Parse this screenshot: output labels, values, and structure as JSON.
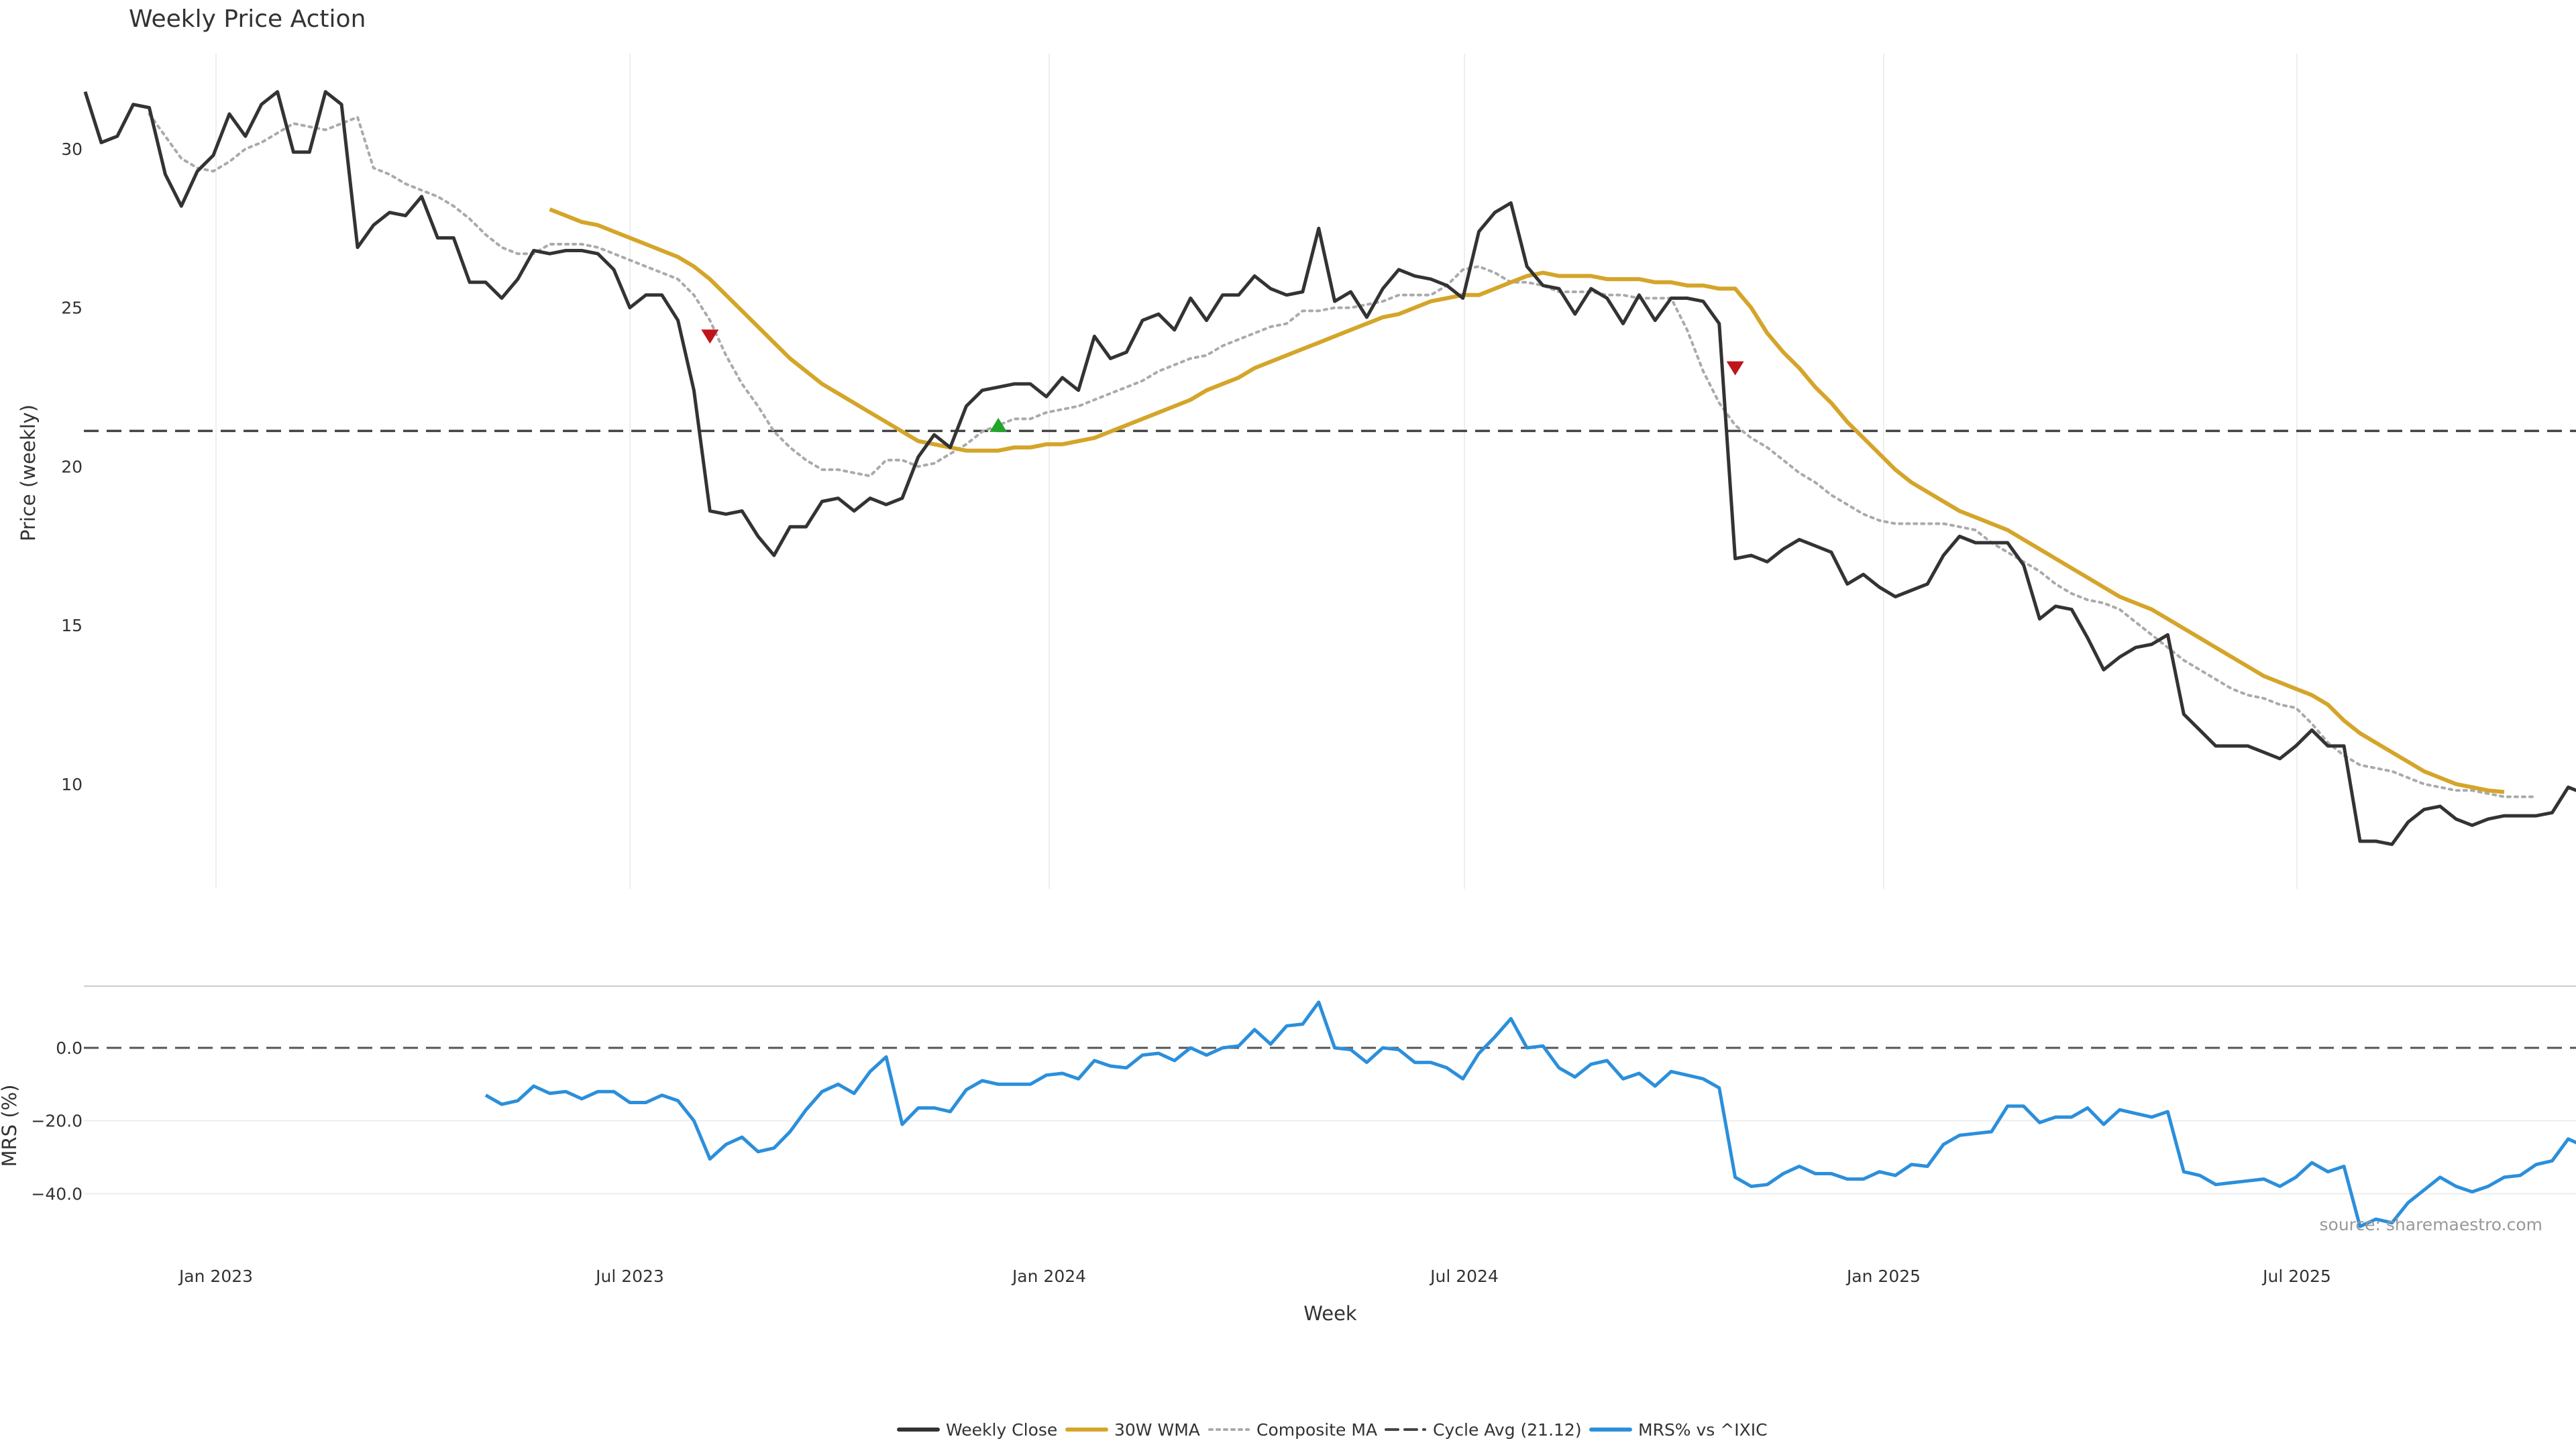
{
  "chart_data": {
    "type": "line",
    "title": "Weekly Price Action",
    "source": "source: sharemaestro.com",
    "xlabel": "Week",
    "x_ticks": [
      "Jan 2023",
      "Jul 2023",
      "Jan 2024",
      "Jul 2024",
      "Jan 2025",
      "Jul 2025"
    ],
    "price_panel": {
      "ylabel": "Price (weekly)",
      "ylim": [
        6.7,
        33
      ],
      "y_ticks": [
        10,
        15,
        20,
        25,
        30
      ],
      "cycle_avg": 21.12,
      "weekly_close": [
        31.8,
        30.2,
        30.4,
        31.4,
        31.3,
        29.2,
        28.2,
        29.3,
        29.8,
        31.1,
        30.4,
        31.4,
        31.8,
        29.9,
        29.9,
        31.8,
        31.4,
        26.9,
        27.6,
        28.0,
        27.9,
        28.5,
        27.2,
        27.2,
        25.8,
        25.8,
        25.3,
        25.9,
        26.8,
        26.7,
        26.8,
        26.8,
        26.7,
        26.2,
        25.0,
        25.4,
        25.4,
        24.6,
        22.4,
        18.6,
        18.5,
        18.6,
        17.8,
        17.2,
        18.1,
        18.1,
        18.9,
        19.0,
        18.6,
        19.0,
        18.8,
        19.0,
        20.3,
        21.0,
        20.6,
        21.9,
        22.4,
        22.5,
        22.6,
        22.6,
        22.2,
        22.8,
        22.4,
        24.1,
        23.4,
        23.6,
        24.6,
        24.8,
        24.3,
        25.3,
        24.6,
        25.4,
        25.4,
        26.0,
        25.6,
        25.4,
        25.5,
        27.5,
        25.2,
        25.5,
        24.7,
        25.6,
        26.2,
        26.0,
        25.9,
        25.7,
        25.3,
        27.4,
        28.0,
        28.3,
        26.3,
        25.7,
        25.6,
        24.8,
        25.6,
        25.3,
        24.5,
        25.4,
        24.6,
        25.3,
        25.3,
        25.2,
        24.5,
        17.1,
        17.2,
        17.0,
        17.4,
        17.7,
        17.5,
        17.3,
        16.3,
        16.6,
        16.2,
        15.9,
        16.1,
        16.3,
        17.2,
        17.8,
        17.6,
        17.6,
        17.6,
        16.9,
        15.2,
        15.6,
        15.5,
        14.6,
        13.6,
        14.0,
        14.3,
        14.4,
        14.7,
        12.2,
        11.7,
        11.2,
        11.2,
        11.2,
        11.0,
        10.8,
        11.2,
        11.7,
        11.2,
        11.2,
        8.2,
        8.2,
        8.1,
        8.8,
        9.2,
        9.3,
        8.9,
        8.7,
        8.9,
        9.0,
        9.0,
        9.0,
        9.1,
        9.9,
        9.7
      ],
      "wma_30w_start_index": 29,
      "wma_30w": [
        28.1,
        27.9,
        27.7,
        27.6,
        27.4,
        27.2,
        27.0,
        26.8,
        26.6,
        26.3,
        25.9,
        25.4,
        24.9,
        24.4,
        23.9,
        23.4,
        23.0,
        22.6,
        22.3,
        22.0,
        21.7,
        21.4,
        21.1,
        20.8,
        20.7,
        20.6,
        20.5,
        20.5,
        20.5,
        20.6,
        20.6,
        20.7,
        20.7,
        20.8,
        20.9,
        21.1,
        21.3,
        21.5,
        21.7,
        21.9,
        22.1,
        22.4,
        22.6,
        22.8,
        23.1,
        23.3,
        23.5,
        23.7,
        23.9,
        24.1,
        24.3,
        24.5,
        24.7,
        24.8,
        25.0,
        25.2,
        25.3,
        25.4,
        25.4,
        25.6,
        25.8,
        26.0,
        26.1,
        26.0,
        26.0,
        26.0,
        25.9,
        25.9,
        25.9,
        25.8,
        25.8,
        25.7,
        25.7,
        25.6,
        25.6,
        25.0,
        24.2,
        23.6,
        23.1,
        22.5,
        22.0,
        21.4,
        20.9,
        20.4,
        19.9,
        19.5,
        19.2,
        18.9,
        18.6,
        18.4,
        18.2,
        18.0,
        17.7,
        17.4,
        17.1,
        16.8,
        16.5,
        16.2,
        15.9,
        15.7,
        15.5,
        15.2,
        14.9,
        14.6,
        14.3,
        14.0,
        13.7,
        13.4,
        13.2,
        13.0,
        12.8,
        12.5,
        12.0,
        11.6,
        11.3,
        11.0,
        10.7,
        10.4,
        10.2,
        10.0,
        9.9,
        9.8,
        9.75
      ],
      "composite_ma_start_index": 4,
      "composite_ma": [
        31.1,
        30.4,
        29.7,
        29.4,
        29.3,
        29.6,
        30.0,
        30.2,
        30.5,
        30.8,
        30.7,
        30.6,
        30.8,
        31.0,
        29.4,
        29.2,
        28.9,
        28.7,
        28.5,
        28.2,
        27.8,
        27.3,
        26.9,
        26.7,
        26.7,
        27.0,
        27.0,
        27.0,
        26.9,
        26.7,
        26.5,
        26.3,
        26.1,
        25.9,
        25.4,
        24.6,
        23.5,
        22.6,
        21.9,
        21.1,
        20.6,
        20.2,
        19.9,
        19.9,
        19.8,
        19.7,
        20.2,
        20.2,
        20.0,
        20.1,
        20.4,
        20.7,
        21.1,
        21.3,
        21.5,
        21.5,
        21.7,
        21.8,
        21.9,
        22.1,
        22.3,
        22.5,
        22.7,
        23.0,
        23.2,
        23.4,
        23.5,
        23.8,
        24.0,
        24.2,
        24.4,
        24.5,
        24.9,
        24.9,
        25.0,
        25.0,
        25.1,
        25.2,
        25.4,
        25.4,
        25.4,
        25.7,
        26.2,
        26.3,
        26.1,
        25.8,
        25.8,
        25.7,
        25.5,
        25.5,
        25.5,
        25.4,
        25.4,
        25.3,
        25.3,
        25.3,
        24.3,
        23.0,
        22.0,
        21.3,
        20.9,
        20.6,
        20.2,
        19.8,
        19.5,
        19.1,
        18.8,
        18.5,
        18.3,
        18.2,
        18.2,
        18.2,
        18.2,
        18.1,
        18.0,
        17.6,
        17.3,
        17.0,
        16.7,
        16.3,
        16.0,
        15.8,
        15.7,
        15.5,
        15.1,
        14.7,
        14.3,
        13.9,
        13.6,
        13.3,
        13.0,
        12.8,
        12.7,
        12.5,
        12.4,
        11.9,
        11.3,
        10.9,
        10.6,
        10.5,
        10.4,
        10.2,
        10.0,
        9.9,
        9.8,
        9.8,
        9.7,
        9.6,
        9.6,
        9.6
      ],
      "sell_signals": [
        {
          "index": 39,
          "value": 24.1
        },
        {
          "index": 103,
          "value": 23.1
        }
      ],
      "buy_signals": [
        {
          "index": 57,
          "value": 21.3
        }
      ]
    },
    "mrs_panel": {
      "ylabel": "MRS (%)",
      "ylim": [
        -53,
        16
      ],
      "y_ticks": [
        0.0,
        -20.0,
        -40.0
      ],
      "y_tick_labels": [
        "0.0",
        "−20.0",
        "−40.0"
      ],
      "start_index": 25,
      "values": [
        -13,
        -15.5,
        -14.5,
        -10.5,
        -12.5,
        -12,
        -14,
        -12,
        -12,
        -15,
        -15,
        -13,
        -14.5,
        -20,
        -30.5,
        -26.5,
        -24.5,
        -28.5,
        -27.5,
        -23,
        -17,
        -12,
        -10,
        -12.5,
        -6.5,
        -2.5,
        -21,
        -16.5,
        -16.5,
        -17.5,
        -11.5,
        -9,
        -10,
        -10,
        -10,
        -7.5,
        -7,
        -8.5,
        -3.5,
        -5,
        -5.5,
        -2,
        -1.5,
        -3.5,
        0,
        -2,
        0,
        0.5,
        5,
        1,
        6,
        6.5,
        12.5,
        0,
        -0.5,
        -4,
        0,
        -0.5,
        -4,
        -4,
        -5.5,
        -8.5,
        -1.5,
        3,
        8,
        0,
        0.5,
        -5.5,
        -8,
        -4.5,
        -3.5,
        -8.5,
        -7,
        -10.5,
        -6.5,
        -7.5,
        -8.5,
        -11,
        -35.5,
        -38,
        -37.5,
        -34.5,
        -32.5,
        -34.5,
        -34.5,
        -36,
        -36,
        -34,
        -35,
        -32,
        -32.5,
        -26.5,
        -24,
        -23.5,
        -23,
        -16,
        -16,
        -20.5,
        -19,
        -19,
        -16.5,
        -21,
        -17,
        -18,
        -19,
        -17.5,
        -34,
        -35,
        -37.5,
        -37,
        -36.5,
        -36,
        -38,
        -35.5,
        -31.5,
        -34,
        -32.5,
        -49,
        -47,
        -48,
        -42.5,
        -39,
        -35.5,
        -38,
        -39.5,
        -38,
        -35.5,
        -35,
        -32,
        -31,
        -25,
        -27
      ]
    },
    "legend": [
      {
        "label": "Weekly Close",
        "color": "#333333",
        "style": "solid"
      },
      {
        "label": "30W WMA",
        "color": "#d4a52a",
        "style": "solid"
      },
      {
        "label": "Composite MA",
        "color": "#aaaaaa",
        "style": "dotted"
      },
      {
        "label": "Cycle Avg (21.12)",
        "color": "#444444",
        "style": "dashed"
      },
      {
        "label": "MRS% vs ^IXIC",
        "color": "#2b8fdb",
        "style": "solid"
      }
    ],
    "colors": {
      "close": "#333333",
      "wma": "#d4a52a",
      "composite": "#aaaaaa",
      "cycle": "#444444",
      "mrs": "#2b8fdb",
      "sell": "#c0141c",
      "buy": "#22a52a"
    }
  }
}
